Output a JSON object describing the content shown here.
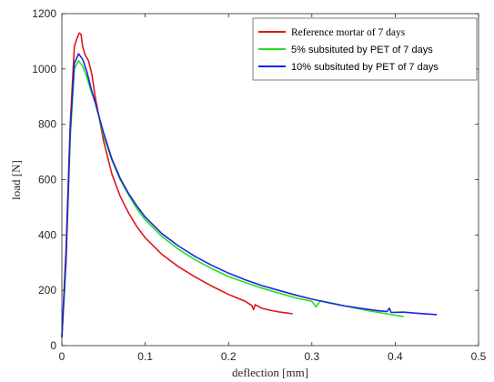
{
  "chart_data": {
    "type": "line",
    "xlabel": "deflection [mm]",
    "ylabel": "load [N]",
    "xlim": [
      0,
      0.5
    ],
    "ylim": [
      0,
      1200
    ],
    "xticks": [
      0,
      0.1,
      0.2,
      0.3,
      0.4,
      0.5
    ],
    "xtick_labels": [
      "0",
      "0.1",
      "0.2",
      "0.3",
      "0.4",
      "0.5"
    ],
    "yticks": [
      0,
      200,
      400,
      600,
      800,
      1000,
      1200
    ],
    "ytick_labels": [
      "0",
      "200",
      "400",
      "600",
      "800",
      "1000",
      "1200"
    ],
    "grid": false,
    "legend_position": "top-right",
    "series": [
      {
        "name": "Reference mortar of 7 days",
        "color": "#e0151b",
        "points": [
          [
            0,
            30
          ],
          [
            0.005,
            350
          ],
          [
            0.01,
            800
          ],
          [
            0.015,
            1080
          ],
          [
            0.018,
            1110
          ],
          [
            0.021,
            1130
          ],
          [
            0.023,
            1125
          ],
          [
            0.025,
            1080
          ],
          [
            0.028,
            1050
          ],
          [
            0.032,
            1030
          ],
          [
            0.036,
            980
          ],
          [
            0.04,
            900
          ],
          [
            0.045,
            820
          ],
          [
            0.05,
            740
          ],
          [
            0.06,
            620
          ],
          [
            0.07,
            540
          ],
          [
            0.08,
            480
          ],
          [
            0.09,
            430
          ],
          [
            0.1,
            390
          ],
          [
            0.12,
            330
          ],
          [
            0.14,
            285
          ],
          [
            0.16,
            248
          ],
          [
            0.18,
            215
          ],
          [
            0.2,
            185
          ],
          [
            0.22,
            160
          ],
          [
            0.228,
            145
          ],
          [
            0.23,
            130
          ],
          [
            0.232,
            148
          ],
          [
            0.24,
            135
          ],
          [
            0.25,
            128
          ],
          [
            0.26,
            122
          ],
          [
            0.27,
            118
          ],
          [
            0.277,
            115
          ]
        ]
      },
      {
        "name": "5% subsituted by PET of 7 days",
        "color": "#22e01e",
        "points": [
          [
            0,
            30
          ],
          [
            0.005,
            300
          ],
          [
            0.01,
            750
          ],
          [
            0.015,
            1000
          ],
          [
            0.02,
            1030
          ],
          [
            0.025,
            1010
          ],
          [
            0.03,
            970
          ],
          [
            0.035,
            920
          ],
          [
            0.04,
            880
          ],
          [
            0.05,
            760
          ],
          [
            0.06,
            670
          ],
          [
            0.07,
            600
          ],
          [
            0.08,
            545
          ],
          [
            0.09,
            495
          ],
          [
            0.1,
            455
          ],
          [
            0.12,
            395
          ],
          [
            0.14,
            348
          ],
          [
            0.16,
            310
          ],
          [
            0.18,
            278
          ],
          [
            0.2,
            250
          ],
          [
            0.22,
            228
          ],
          [
            0.24,
            208
          ],
          [
            0.26,
            190
          ],
          [
            0.28,
            173
          ],
          [
            0.3,
            160
          ],
          [
            0.305,
            140
          ],
          [
            0.31,
            162
          ],
          [
            0.33,
            150
          ],
          [
            0.35,
            137
          ],
          [
            0.37,
            125
          ],
          [
            0.39,
            115
          ],
          [
            0.4,
            110
          ],
          [
            0.41,
            105
          ]
        ]
      },
      {
        "name": "10% subsituted by PET of 7 days",
        "color": "#1e22e0",
        "points": [
          [
            0,
            30
          ],
          [
            0.005,
            320
          ],
          [
            0.01,
            780
          ],
          [
            0.015,
            1020
          ],
          [
            0.02,
            1055
          ],
          [
            0.025,
            1035
          ],
          [
            0.03,
            990
          ],
          [
            0.035,
            930
          ],
          [
            0.04,
            880
          ],
          [
            0.05,
            770
          ],
          [
            0.06,
            675
          ],
          [
            0.07,
            605
          ],
          [
            0.08,
            550
          ],
          [
            0.09,
            505
          ],
          [
            0.1,
            465
          ],
          [
            0.12,
            405
          ],
          [
            0.14,
            360
          ],
          [
            0.16,
            322
          ],
          [
            0.18,
            290
          ],
          [
            0.2,
            262
          ],
          [
            0.22,
            238
          ],
          [
            0.24,
            217
          ],
          [
            0.26,
            200
          ],
          [
            0.28,
            183
          ],
          [
            0.3,
            168
          ],
          [
            0.32,
            155
          ],
          [
            0.34,
            143
          ],
          [
            0.36,
            134
          ],
          [
            0.38,
            126
          ],
          [
            0.39,
            123
          ],
          [
            0.393,
            135
          ],
          [
            0.395,
            120
          ],
          [
            0.41,
            121
          ],
          [
            0.43,
            116
          ],
          [
            0.45,
            112
          ]
        ]
      }
    ]
  }
}
